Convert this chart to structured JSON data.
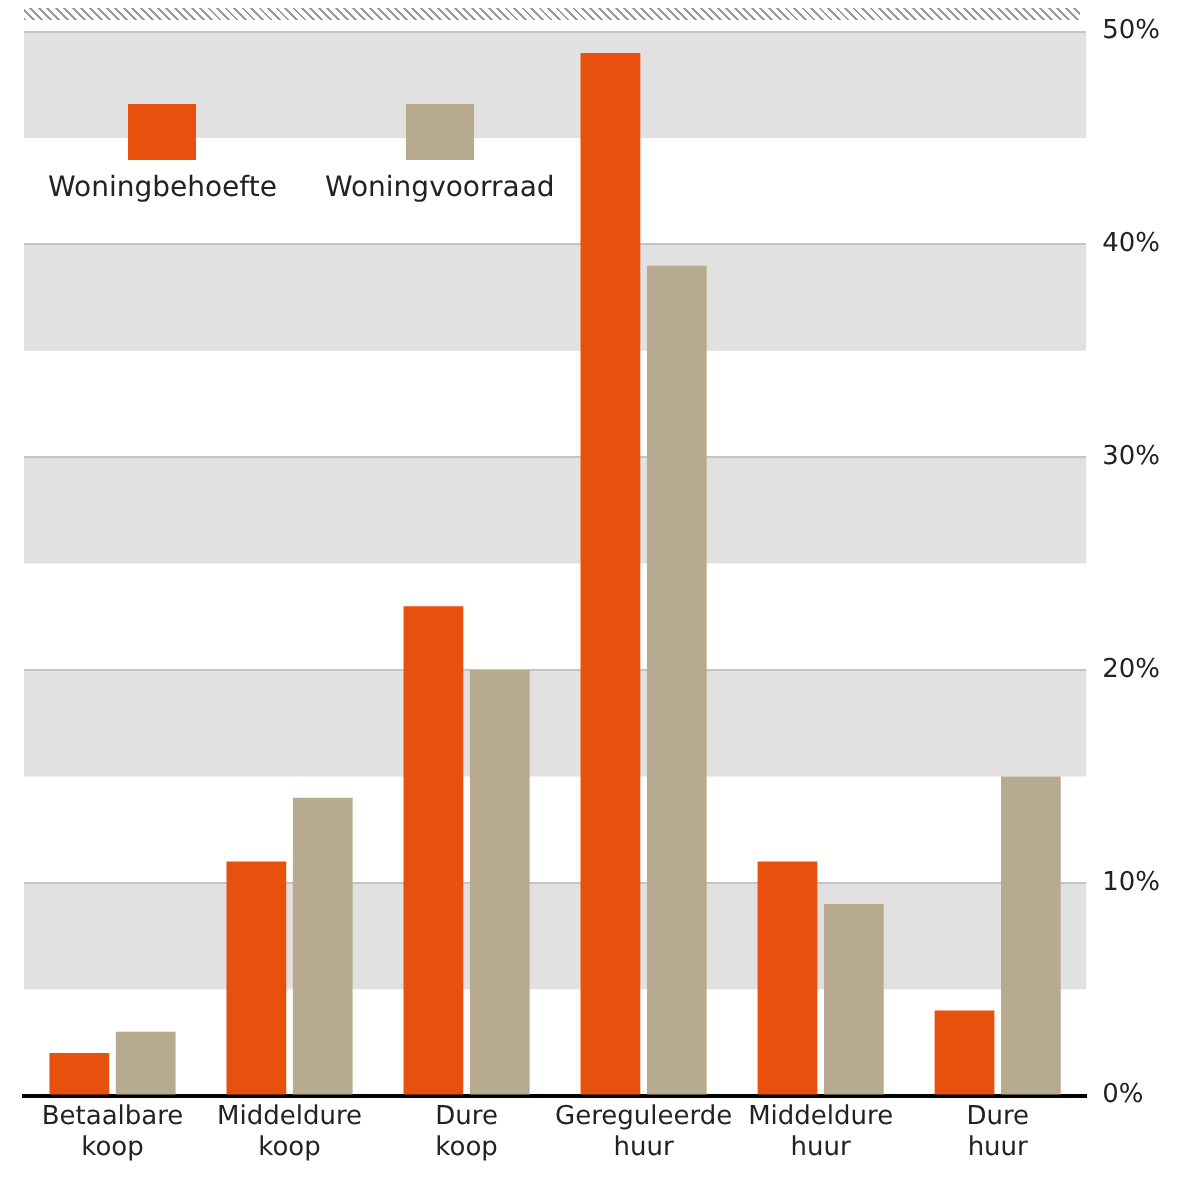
{
  "chart_data": {
    "type": "bar",
    "categories": [
      "Betaalbare koop",
      "Middeldure koop",
      "Dure koop",
      "Gereguleerde huur",
      "Middeldure huur",
      "Dure huur"
    ],
    "series": [
      {
        "name": "Woningbehoefte",
        "color": "#e8500e",
        "values": [
          2,
          11,
          23,
          49,
          11,
          4
        ]
      },
      {
        "name": "Woningvoorraad",
        "color": "#b8aa8e",
        "values": [
          3,
          14,
          20,
          39,
          9,
          15
        ]
      }
    ],
    "ylim": [
      0,
      50
    ],
    "yticks": [
      {
        "value": 0,
        "label": "0%"
      },
      {
        "value": 10,
        "label": "10%"
      },
      {
        "value": 20,
        "label": "20%"
      },
      {
        "value": 30,
        "label": "30%"
      },
      {
        "value": 40,
        "label": "40%"
      },
      {
        "value": 50,
        "label": "50%"
      }
    ],
    "bands": [
      {
        "axis": "y",
        "from": 5,
        "to": 10,
        "color": "#e1e1e1"
      },
      {
        "axis": "y",
        "from": 15,
        "to": 20,
        "color": "#e1e1e1"
      },
      {
        "axis": "y",
        "from": 25,
        "to": 30,
        "color": "#e1e1e1"
      },
      {
        "axis": "y",
        "from": 35,
        "to": 40,
        "color": "#e1e1e1"
      },
      {
        "axis": "y",
        "from": 45,
        "to": 50,
        "color": "#e1e1e1"
      }
    ],
    "grid": "y",
    "legend": "top left"
  }
}
